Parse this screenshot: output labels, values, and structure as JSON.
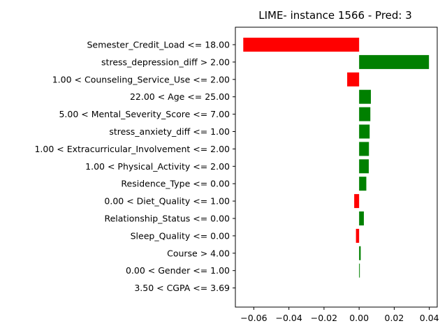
{
  "chart_data": {
    "type": "bar",
    "orientation": "horizontal",
    "title": "LIME- instance 1566 - Pred: 3",
    "xlabel": "",
    "ylabel": "",
    "xlim": [
      -0.0705,
      0.0445
    ],
    "xticks": [
      -0.06,
      -0.04,
      -0.02,
      0.0,
      0.02,
      0.04
    ],
    "xtick_labels": [
      "−0.06",
      "−0.04",
      "−0.02",
      "0.00",
      "0.02",
      "0.04"
    ],
    "grid": false,
    "legend": "none",
    "positive_color": "#008000",
    "negative_color": "#ff0000",
    "categories": [
      "Semester_Credit_Load <= 18.00",
      "stress_depression_diff > 2.00",
      "1.00 < Counseling_Service_Use <= 2.00",
      "22.00 < Age <= 25.00",
      "5.00 < Mental_Severity_Score <= 7.00",
      "stress_anxiety_diff <= 1.00",
      "1.00 < Extracurricular_Involvement <= 2.00",
      "1.00 < Physical_Activity <= 2.00",
      "Residence_Type <= 0.00",
      "0.00 < Diet_Quality <= 1.00",
      "Relationship_Status <= 0.00",
      "Sleep_Quality <= 0.00",
      "Course > 4.00",
      "0.00 < Gender <= 1.00",
      "3.50 < CGPA <= 3.69"
    ],
    "values": [
      -0.066,
      0.0398,
      -0.0068,
      0.0067,
      0.0064,
      0.006,
      0.0056,
      0.0055,
      0.0041,
      -0.0028,
      0.0027,
      -0.0018,
      0.0009,
      0.0004,
      0.0
    ]
  }
}
